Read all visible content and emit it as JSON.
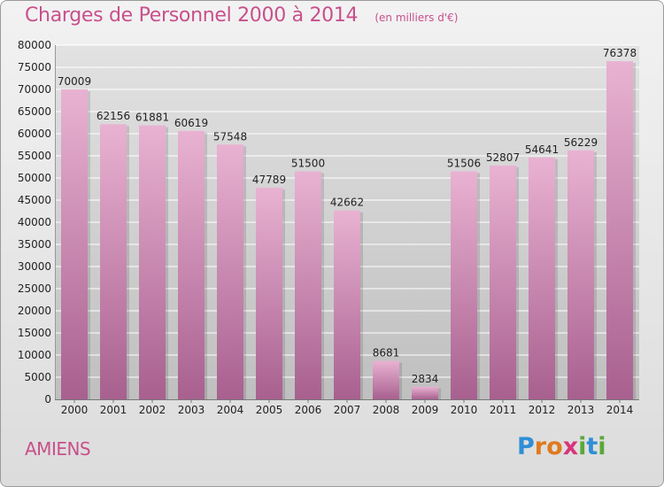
{
  "title": "Charges de Personnel 2000 à 2014",
  "subtitle": "(en milliers d'€)",
  "city": "AMIENS",
  "logo": {
    "letters": [
      "P",
      "r",
      "o",
      "x",
      "i",
      "t",
      "i"
    ],
    "colors": [
      "#2f8fd4",
      "#e07a1f",
      "#e07a1f",
      "#d9347a",
      "#5aa83a",
      "#2f8fd4",
      "#5aa83a"
    ]
  },
  "colors": {
    "bar_top": "#e9b2d2",
    "bar_bottom": "#a8608f",
    "text_accent": "#c8508c",
    "grid": "#ffffff",
    "plot_bg_top": "#e2e2e2",
    "plot_bg_bottom": "#bfbfbf"
  },
  "chart_data": {
    "type": "bar",
    "title": "Charges de Personnel 2000 à 2014",
    "subtitle": "(en milliers d'€)",
    "categories": [
      "2000",
      "2001",
      "2002",
      "2003",
      "2004",
      "2005",
      "2006",
      "2007",
      "2008",
      "2009",
      "2010",
      "2011",
      "2012",
      "2013",
      "2014"
    ],
    "values": [
      70009,
      62156,
      61881,
      60619,
      57548,
      47789,
      51500,
      42662,
      8681,
      2834,
      51506,
      52807,
      54641,
      56229,
      76378
    ],
    "ylim": [
      0,
      80000
    ],
    "yticks": [
      0,
      5000,
      10000,
      15000,
      20000,
      25000,
      30000,
      35000,
      40000,
      45000,
      50000,
      55000,
      60000,
      65000,
      70000,
      75000,
      80000
    ],
    "grid": true,
    "xlabel": "",
    "ylabel": ""
  }
}
